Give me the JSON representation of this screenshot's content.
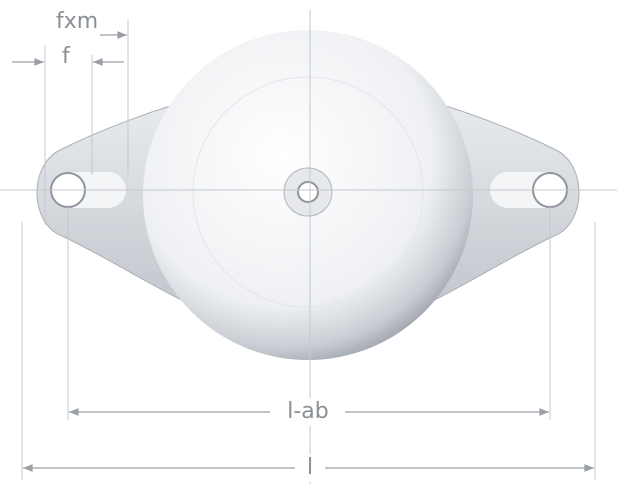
{
  "dimensions": {
    "fxm": "fxm",
    "f": "f",
    "l_ab": "l-ab",
    "l": "l"
  }
}
